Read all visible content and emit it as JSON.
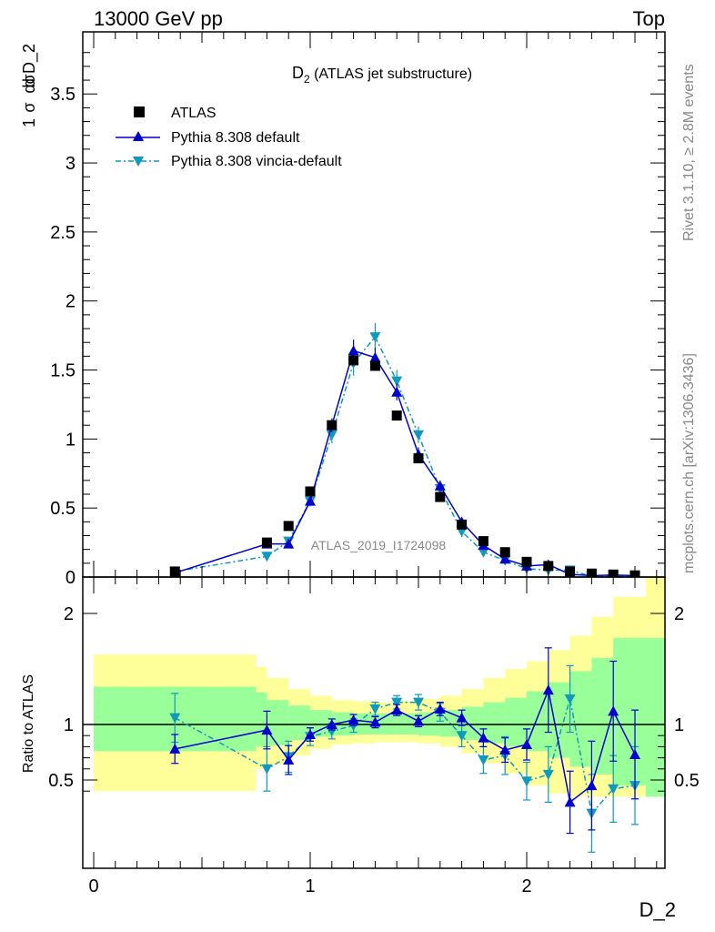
{
  "header": {
    "left": "13000 GeV pp",
    "right": "Top"
  },
  "side_text": {
    "rivet": "Rivet 3.1.10, ≥ 2.8M events",
    "mcplots": "mcplots.cern.ch [arXiv:1306.3436]"
  },
  "plot_title": "D",
  "plot_title_sub": "2",
  "plot_title_rest": " (ATLAS jet substructure)",
  "analysis_tag": "ATLAS_2019_I1724098",
  "upper_ylabel": "1/σ dσ/d D_2",
  "ylabel_num1": "1",
  "ylabel_den1": "σ",
  "ylabel_num2": "dσ",
  "ylabel_den2": "d D_2",
  "lower_ylabel": "Ratio to ATLAS",
  "xlabel": "D_2",
  "legend": {
    "data": "ATLAS",
    "mc1": "Pythia 8.308 default",
    "mc2": "Pythia 8.308 vincia-default"
  },
  "colors": {
    "data": "#000000",
    "mc1": "#0000cc",
    "mc2": "#1199bb",
    "band_inner": "#99ff99",
    "band_outer": "#ffff99"
  },
  "chart_data": {
    "type": "scatter",
    "upper": {
      "xlim": [
        -0.05,
        2.65
      ],
      "ylim": [
        0,
        3.95
      ],
      "yticks": [
        0,
        0.5,
        1,
        1.5,
        2,
        2.5,
        3,
        3.5
      ],
      "ytick_labels": [
        "0",
        "0.5",
        "1",
        "1.5",
        "2",
        "2.5",
        "3",
        "3.5"
      ]
    },
    "lower": {
      "ylim": [
        0.35,
        2.35
      ],
      "yticks": [
        0.5,
        1,
        2
      ],
      "ytick_labels": [
        "0.5",
        "1",
        "2"
      ],
      "reference_line": 1
    },
    "xticks": [
      0,
      1,
      2
    ],
    "xtick_labels": [
      "0",
      "1",
      "2"
    ],
    "x": [
      0.375,
      0.8,
      0.9,
      1.0,
      1.1,
      1.2,
      1.3,
      1.4,
      1.5,
      1.6,
      1.7,
      1.8,
      1.9,
      2.0,
      2.1,
      2.2,
      2.3,
      2.4,
      2.5
    ],
    "series": [
      {
        "name": "ATLAS",
        "values": [
          0.04,
          0.25,
          0.37,
          0.62,
          1.1,
          1.57,
          1.53,
          1.17,
          0.86,
          0.58,
          0.38,
          0.26,
          0.18,
          0.11,
          0.08,
          0.04,
          0.025,
          0.018,
          0.012
        ],
        "band_inner": [
          [
            0.0,
            0.75,
            0.76,
            1.34
          ],
          [
            0.75,
            0.8,
            0.8,
            1.29
          ],
          [
            0.8,
            0.9,
            0.81,
            1.22
          ],
          [
            0.9,
            1.0,
            0.86,
            1.17
          ],
          [
            1.0,
            1.1,
            0.89,
            1.13
          ],
          [
            1.1,
            1.2,
            0.9,
            1.11
          ],
          [
            1.2,
            1.3,
            0.91,
            1.1
          ],
          [
            1.3,
            1.4,
            0.91,
            1.1
          ],
          [
            1.4,
            1.5,
            0.91,
            1.1
          ],
          [
            1.5,
            1.6,
            0.9,
            1.11
          ],
          [
            1.6,
            1.7,
            0.89,
            1.13
          ],
          [
            1.7,
            1.8,
            0.86,
            1.16
          ],
          [
            1.8,
            1.9,
            0.83,
            1.2
          ],
          [
            1.9,
            2.0,
            0.8,
            1.24
          ],
          [
            2.0,
            2.1,
            0.76,
            1.3
          ],
          [
            2.1,
            2.2,
            0.7,
            1.38
          ],
          [
            2.2,
            2.3,
            0.62,
            1.48
          ],
          [
            2.3,
            2.4,
            0.55,
            1.6
          ],
          [
            2.4,
            2.55,
            0.45,
            1.78
          ],
          [
            2.55,
            2.65,
            0.35,
            1.78
          ]
        ],
        "band_outer": [
          [
            0.0,
            0.75,
            0.4,
            1.63
          ],
          [
            0.75,
            0.8,
            0.6,
            1.52
          ],
          [
            0.8,
            0.9,
            0.64,
            1.42
          ],
          [
            0.9,
            1.0,
            0.72,
            1.32
          ],
          [
            1.0,
            1.1,
            0.78,
            1.26
          ],
          [
            1.1,
            1.2,
            0.82,
            1.22
          ],
          [
            1.2,
            1.3,
            0.83,
            1.21
          ],
          [
            1.3,
            1.4,
            0.84,
            1.2
          ],
          [
            1.4,
            1.5,
            0.84,
            1.21
          ],
          [
            1.5,
            1.6,
            0.83,
            1.23
          ],
          [
            1.6,
            1.7,
            0.8,
            1.26
          ],
          [
            1.7,
            1.8,
            0.74,
            1.32
          ],
          [
            1.8,
            1.9,
            0.65,
            1.42
          ],
          [
            1.9,
            2.0,
            0.56,
            1.5
          ],
          [
            2.0,
            2.1,
            0.45,
            1.57
          ],
          [
            2.1,
            2.2,
            0.38,
            1.67
          ],
          [
            2.2,
            2.3,
            0.35,
            1.8
          ],
          [
            2.3,
            2.4,
            0.35,
            1.97
          ],
          [
            2.4,
            2.55,
            0.35,
            2.15
          ],
          [
            2.55,
            2.65,
            0.35,
            2.35
          ]
        ]
      },
      {
        "name": "Pythia 8.308 default",
        "values": [
          0.03,
          0.24,
          0.24,
          0.55,
          1.1,
          1.64,
          1.59,
          1.34,
          0.89,
          0.66,
          0.4,
          0.23,
          0.13,
          0.08,
          0.09,
          0.02,
          0.01,
          0.015,
          0.01
        ],
        "errors": [
          0.01,
          0.02,
          0.02,
          0.03,
          0.05,
          0.08,
          0.07,
          0.06,
          0.05,
          0.04,
          0.03,
          0.02,
          0.02,
          0.01,
          0.015,
          0.01,
          0.005,
          0.01,
          0.005
        ],
        "ratio": [
          0.78,
          0.95,
          0.68,
          0.91,
          1.0,
          1.04,
          1.02,
          1.13,
          1.03,
          1.14,
          1.06,
          0.88,
          0.77,
          0.82,
          1.31,
          0.3,
          0.45,
          1.12,
          0.73
        ],
        "ratio_err": [
          0.13,
          0.17,
          0.13,
          0.06,
          0.05,
          0.05,
          0.05,
          0.05,
          0.05,
          0.06,
          0.07,
          0.08,
          0.11,
          0.14,
          0.38,
          0.28,
          0.4,
          0.45,
          0.4
        ]
      },
      {
        "name": "Pythia 8.308 vincia-default",
        "values": [
          0.04,
          0.15,
          0.26,
          0.55,
          1.03,
          1.55,
          1.74,
          1.42,
          1.03,
          0.64,
          0.33,
          0.18,
          0.12,
          0.06,
          0.05,
          0.05,
          0.005,
          0.008,
          0.005
        ],
        "errors": [
          0.01,
          0.03,
          0.03,
          0.04,
          0.06,
          0.09,
          0.1,
          0.08,
          0.06,
          0.05,
          0.04,
          0.03,
          0.02,
          0.01,
          0.01,
          0.01,
          0.004,
          0.005,
          0.004
        ],
        "ratio": [
          1.06,
          0.6,
          0.71,
          0.89,
          0.94,
          0.99,
          1.14,
          1.2,
          1.2,
          1.11,
          0.9,
          0.68,
          0.72,
          0.49,
          0.55,
          1.23,
          0.2,
          0.42,
          0.45
        ],
        "ratio_err": [
          0.22,
          0.2,
          0.14,
          0.08,
          0.07,
          0.06,
          0.06,
          0.06,
          0.07,
          0.08,
          0.1,
          0.12,
          0.17,
          0.17,
          0.25,
          0.3,
          0.35,
          0.3,
          0.35
        ]
      }
    ]
  }
}
